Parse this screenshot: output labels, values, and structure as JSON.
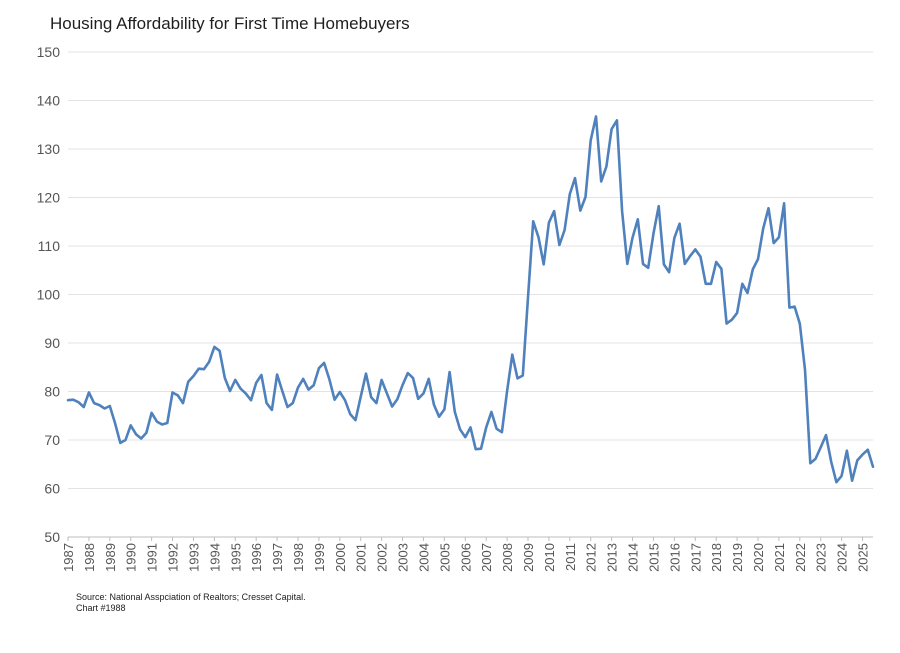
{
  "chart_data": {
    "type": "line",
    "title": "Housing Affordability for First Time Homebuyers",
    "xlabel": "",
    "ylabel": "",
    "ylim": [
      50,
      150
    ],
    "yticks": [
      50,
      60,
      70,
      80,
      90,
      100,
      110,
      120,
      130,
      140,
      150
    ],
    "xlim": [
      1987,
      2025.5
    ],
    "xticks": [
      "1987",
      "1988",
      "1989",
      "1990",
      "1991",
      "1992",
      "1993",
      "1994",
      "1995",
      "1996",
      "1997",
      "1998",
      "1999",
      "2000",
      "2001",
      "2002",
      "2003",
      "2004",
      "2005",
      "2006",
      "2007",
      "2008",
      "2009",
      "2010",
      "2011",
      "2012",
      "2013",
      "2014",
      "2015",
      "2016",
      "2017",
      "2018",
      "2019",
      "2020",
      "2021",
      "2022",
      "2023",
      "2024",
      "2025"
    ],
    "grid": true,
    "color": "#4f81bd",
    "series": [
      {
        "x": [
          1987,
          1987.25,
          1987.5,
          1987.75,
          1988,
          1988.25,
          1988.5,
          1988.75,
          1989,
          1989.25,
          1989.5,
          1989.75,
          1990,
          1990.25,
          1990.5,
          1990.75,
          1991,
          1991.25,
          1991.5,
          1991.75,
          1992,
          1992.25,
          1992.5,
          1992.75,
          1993,
          1993.25,
          1993.5,
          1993.75,
          1994,
          1994.25,
          1994.5,
          1994.75,
          1995,
          1995.25,
          1995.5,
          1995.75,
          1996,
          1996.25,
          1996.5,
          1996.75,
          1997,
          1997.25,
          1997.5,
          1997.75,
          1998,
          1998.25,
          1998.5,
          1998.75,
          1999,
          1999.25,
          1999.5,
          1999.75,
          2000,
          2000.25,
          2000.5,
          2000.75,
          2001,
          2001.25,
          2001.5,
          2001.75,
          2002,
          2002.25,
          2002.5,
          2002.75,
          2003,
          2003.25,
          2003.5,
          2003.75,
          2004,
          2004.25,
          2004.5,
          2004.75,
          2005,
          2005.25,
          2005.5,
          2005.75,
          2006,
          2006.25,
          2006.5,
          2006.75,
          2007,
          2007.25,
          2007.5,
          2007.75,
          2008,
          2008.25,
          2008.5,
          2008.75,
          2009,
          2009.25,
          2009.5,
          2009.75,
          2010,
          2010.25,
          2010.5,
          2010.75,
          2011,
          2011.25,
          2011.5,
          2011.75,
          2012,
          2012.25,
          2012.5,
          2012.75,
          2013,
          2013.25,
          2013.5,
          2013.75,
          2014,
          2014.25,
          2014.5,
          2014.75,
          2015,
          2015.25,
          2015.5,
          2015.75,
          2016,
          2016.25,
          2016.5,
          2016.75,
          2017,
          2017.25,
          2017.5,
          2017.75,
          2018,
          2018.25,
          2018.5,
          2018.75,
          2019,
          2019.25,
          2019.5,
          2019.75,
          2020,
          2020.25,
          2020.5,
          2020.75,
          2021,
          2021.25,
          2021.5,
          2021.75,
          2022,
          2022.25,
          2022.5,
          2022.75,
          2023,
          2023.25,
          2023.5,
          2023.75,
          2024,
          2024.25,
          2024.5,
          2024.75,
          2025,
          2025.25,
          2025.5
        ],
        "values": [
          78.2,
          78.3,
          77.8,
          76.8,
          79.8,
          77.6,
          77.2,
          76.5,
          77,
          73.5,
          69.4,
          70,
          73,
          71.2,
          70.3,
          71.5,
          75.6,
          73.8,
          73.2,
          73.5,
          79.8,
          79.2,
          77.6,
          82,
          83.2,
          84.7,
          84.6,
          86.1,
          89.2,
          88.4,
          82.8,
          80.1,
          82.4,
          80.6,
          79.6,
          78.2,
          81.8,
          83.4,
          77.6,
          76.2,
          83.5,
          80.1,
          76.8,
          77.6,
          80.8,
          82.6,
          80.4,
          81.3,
          84.8,
          85.9,
          82.5,
          78.3,
          79.9,
          78.2,
          75.3,
          74.1,
          78.9,
          83.7,
          78.8,
          77.6,
          82.4,
          79.6,
          76.9,
          78.4,
          81.3,
          83.8,
          82.8,
          78.5,
          79.6,
          82.6,
          77.3,
          74.8,
          76.3,
          84,
          75.8,
          72.2,
          70.6,
          72.6,
          68.1,
          68.2,
          72.6,
          75.8,
          72.3,
          71.6,
          80.1,
          87.6,
          82.7,
          83.3,
          99.4,
          115.1,
          111.8,
          106.2,
          114.8,
          117.2,
          110.2,
          113.3,
          120.7,
          124,
          117.3,
          120.1,
          131.8,
          136.7,
          123.3,
          126.4,
          134.1,
          135.9,
          117.2,
          106.3,
          111.7,
          115.5,
          106.3,
          105.5,
          112.6,
          118.2,
          106.2,
          104.6,
          111.7,
          114.6,
          106.3,
          107.9,
          109.3,
          107.8,
          102.2,
          102.2,
          106.7,
          105.3,
          94,
          94.8,
          96.2,
          102.2,
          100.3,
          105.2,
          107.3,
          113.6,
          117.8,
          110.6,
          111.8,
          118.8,
          97.3,
          97.5,
          94,
          84.5,
          65.2,
          66.1,
          68.5,
          71,
          65.5,
          61.3,
          62.6,
          67.8,
          61.6,
          65.8,
          67,
          68,
          64.5
        ]
      }
    ]
  },
  "source": {
    "line1": "Source: National Asspciation of Realtors; Cresset Capital.",
    "line2": "Chart #1988"
  }
}
